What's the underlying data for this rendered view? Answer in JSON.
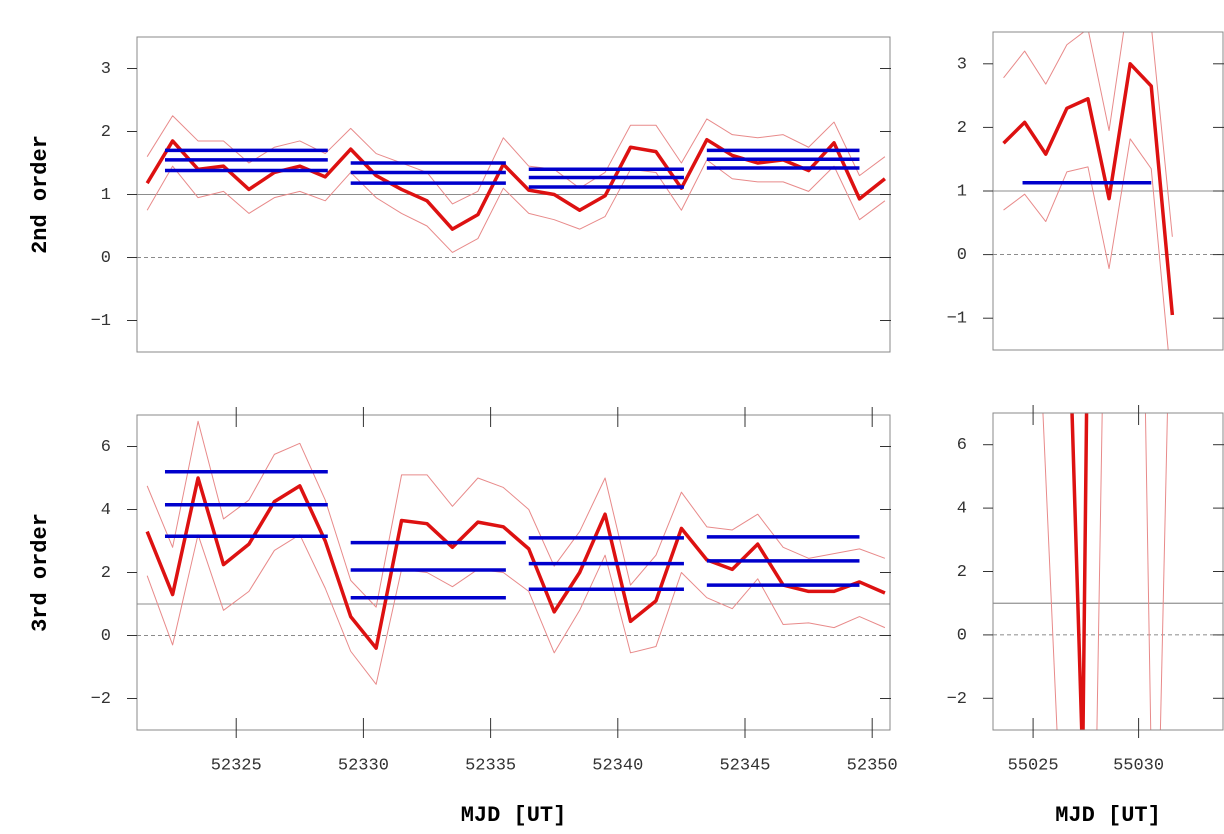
{
  "chart_data": [
    {
      "type": "line",
      "ylabel": "2nd order",
      "xlim": [
        52321.1,
        52350.7
      ],
      "ylim": [
        -1.5,
        3.5
      ],
      "yticks": [
        {
          "value": -1,
          "label": "−1"
        },
        0,
        1,
        2,
        3
      ],
      "reference_lines": [
        {
          "value": 1,
          "style": "solid"
        },
        {
          "value": 0,
          "style": "dashed"
        }
      ],
      "x": [
        52321.5,
        52322.5,
        52323.5,
        52324.5,
        52325.5,
        52326.5,
        52327.5,
        52328.5,
        52329.5,
        52330.5,
        52331.5,
        52332.5,
        52333.5,
        52334.5,
        52335.5,
        52336.5,
        52337.5,
        52338.5,
        52339.5,
        52340.5,
        52341.5,
        52342.5,
        52343.5,
        52344.5,
        52345.5,
        52346.5,
        52347.5,
        52348.5,
        52349.5,
        52350.5
      ],
      "series": [
        {
          "color": "#e88a8a",
          "width": 1,
          "values": [
            0.75,
            1.45,
            0.95,
            1.05,
            0.7,
            0.95,
            1.05,
            0.9,
            1.35,
            0.95,
            0.7,
            0.5,
            0.08,
            0.3,
            1.1,
            0.7,
            0.6,
            0.45,
            0.65,
            1.4,
            1.35,
            0.75,
            1.55,
            1.25,
            1.2,
            1.2,
            1.05,
            1.45,
            0.6,
            0.9
          ]
        },
        {
          "color": "#e88a8a",
          "width": 1,
          "values": [
            1.6,
            2.25,
            1.85,
            1.85,
            1.5,
            1.75,
            1.85,
            1.65,
            2.05,
            1.65,
            1.5,
            1.35,
            0.85,
            1.05,
            1.9,
            1.45,
            1.4,
            1.1,
            1.35,
            2.1,
            2.1,
            1.5,
            2.2,
            1.95,
            1.9,
            1.95,
            1.75,
            2.15,
            1.3,
            1.6
          ]
        },
        {
          "color": "#dd1111",
          "width": 3.5,
          "values": [
            1.18,
            1.85,
            1.4,
            1.45,
            1.08,
            1.35,
            1.45,
            1.28,
            1.72,
            1.3,
            1.08,
            0.9,
            0.45,
            0.68,
            1.48,
            1.07,
            1.0,
            0.75,
            0.98,
            1.75,
            1.68,
            1.1,
            1.87,
            1.62,
            1.5,
            1.55,
            1.38,
            1.82,
            0.93,
            1.25
          ]
        }
      ],
      "level_color": "#0000cc",
      "levels": [
        {
          "xrange": [
            52322.2,
            52328.6
          ],
          "values": [
            1.7,
            1.55,
            1.38
          ]
        },
        {
          "xrange": [
            52329.5,
            52335.6
          ],
          "values": [
            1.5,
            1.35,
            1.18
          ]
        },
        {
          "xrange": [
            52336.5,
            52342.6
          ],
          "values": [
            1.4,
            1.27,
            1.12
          ]
        },
        {
          "xrange": [
            52343.5,
            52349.5
          ],
          "values": [
            1.7,
            1.56,
            1.42
          ]
        }
      ]
    },
    {
      "type": "line",
      "ylabel": "3rd order",
      "xlabel": "MJD [UT]",
      "xlim": [
        52321.1,
        52350.7
      ],
      "ylim": [
        -3,
        7
      ],
      "xticks": [
        52325,
        52330,
        52335,
        52340,
        52345,
        52350
      ],
      "yticks": [
        {
          "value": -2,
          "label": "−2"
        },
        0,
        2,
        4,
        6
      ],
      "reference_lines": [
        {
          "value": 1,
          "style": "solid"
        },
        {
          "value": 0,
          "style": "dashed"
        }
      ],
      "x": [
        52321.5,
        52322.5,
        52323.5,
        52324.5,
        52325.5,
        52326.5,
        52327.5,
        52328.5,
        52329.5,
        52330.5,
        52331.5,
        52332.5,
        52333.5,
        52334.5,
        52335.5,
        52336.5,
        52337.5,
        52338.5,
        52339.5,
        52340.5,
        52341.5,
        52342.5,
        52343.5,
        52344.5,
        52345.5,
        52346.5,
        52347.5,
        52348.5,
        52349.5,
        52350.5
      ],
      "series": [
        {
          "color": "#e88a8a",
          "width": 1,
          "values": [
            1.9,
            -0.3,
            3.2,
            0.8,
            1.4,
            2.7,
            3.2,
            1.5,
            -0.5,
            -1.55,
            2.1,
            2.0,
            1.55,
            2.1,
            2.0,
            1.4,
            -0.55,
            0.8,
            2.55,
            -0.55,
            -0.35,
            2.0,
            1.2,
            0.85,
            1.8,
            0.35,
            0.4,
            0.25,
            0.6,
            0.25
          ]
        },
        {
          "color": "#e88a8a",
          "width": 1,
          "values": [
            4.75,
            2.8,
            6.8,
            3.7,
            4.3,
            5.75,
            6.1,
            4.3,
            1.75,
            0.9,
            5.1,
            5.1,
            4.1,
            5.0,
            4.7,
            4.0,
            2.2,
            3.3,
            5.0,
            1.6,
            2.55,
            4.55,
            3.45,
            3.35,
            3.85,
            2.8,
            2.45,
            2.6,
            2.75,
            2.45
          ]
        },
        {
          "color": "#dd1111",
          "width": 3.5,
          "values": [
            3.3,
            1.3,
            5.0,
            2.25,
            2.9,
            4.25,
            4.75,
            3.0,
            0.6,
            -0.4,
            3.65,
            3.55,
            2.8,
            3.6,
            3.45,
            2.75,
            0.75,
            2.0,
            3.85,
            0.45,
            1.1,
            3.4,
            2.4,
            2.1,
            2.9,
            1.6,
            1.4,
            1.4,
            1.7,
            1.35
          ]
        }
      ],
      "level_color": "#0000cc",
      "levels": [
        {
          "xrange": [
            52322.2,
            52328.6
          ],
          "values": [
            5.2,
            4.15,
            3.15
          ]
        },
        {
          "xrange": [
            52329.5,
            52335.6
          ],
          "values": [
            2.95,
            2.08,
            1.2
          ]
        },
        {
          "xrange": [
            52336.5,
            52342.6
          ],
          "values": [
            3.1,
            2.28,
            1.47
          ]
        },
        {
          "xrange": [
            52343.5,
            52349.5
          ],
          "values": [
            3.13,
            2.37,
            1.6
          ]
        }
      ]
    },
    {
      "type": "line",
      "xlim": [
        55023.1,
        55034
      ],
      "ylim": [
        -1.5,
        3.5
      ],
      "yticks": [
        {
          "value": -1,
          "label": "−1"
        },
        0,
        1,
        2,
        3
      ],
      "reference_lines": [
        {
          "value": 1,
          "style": "solid"
        },
        {
          "value": 0,
          "style": "dashed"
        }
      ],
      "x": [
        55023.6,
        55024.6,
        55025.6,
        55026.6,
        55027.6,
        55028.6,
        55029.6,
        55030.6,
        55031.6
      ],
      "series": [
        {
          "color": "#e88a8a",
          "width": 1,
          "values": [
            0.7,
            0.95,
            0.52,
            1.3,
            1.38,
            -0.22,
            1.82,
            1.35,
            -2.2
          ]
        },
        {
          "color": "#e88a8a",
          "width": 1,
          "values": [
            2.78,
            3.2,
            2.68,
            3.3,
            3.55,
            1.95,
            4.2,
            3.6,
            0.28
          ]
        },
        {
          "color": "#dd1111",
          "width": 3.5,
          "values": [
            1.75,
            2.08,
            1.58,
            2.3,
            2.45,
            0.88,
            3.0,
            2.65,
            -0.95
          ]
        }
      ],
      "level_color": "#0000cc",
      "levels": [
        {
          "xrange": [
            55024.5,
            55030.6
          ],
          "values": [
            1.13
          ]
        }
      ]
    },
    {
      "type": "line",
      "xlabel": "MJD [UT]",
      "xlim": [
        55023.1,
        55034
      ],
      "ylim": [
        -3,
        7
      ],
      "xticks": [
        55025,
        55030
      ],
      "yticks": [
        {
          "value": -2,
          "label": "−2"
        },
        0,
        2,
        4,
        6
      ],
      "reference_lines": [
        {
          "value": 1,
          "style": "solid"
        },
        {
          "value": 0,
          "style": "dashed"
        }
      ],
      "series": [
        {
          "color": "#e88a8a",
          "width": 1,
          "x": [
            55025.4,
            55026.2,
            55028.0,
            55028.3
          ],
          "values": [
            8,
            -4,
            -4,
            8
          ]
        },
        {
          "color": "#e88a8a",
          "width": 1,
          "x": [
            55030.3,
            55030.6,
            55031.0,
            55031.4
          ],
          "values": [
            8,
            -4,
            -4,
            8
          ]
        },
        {
          "color": "#dd1111",
          "width": 3.5,
          "x": [
            55026.8,
            55027.35,
            55027.55
          ],
          "values": [
            8,
            -4,
            8
          ]
        }
      ]
    }
  ]
}
